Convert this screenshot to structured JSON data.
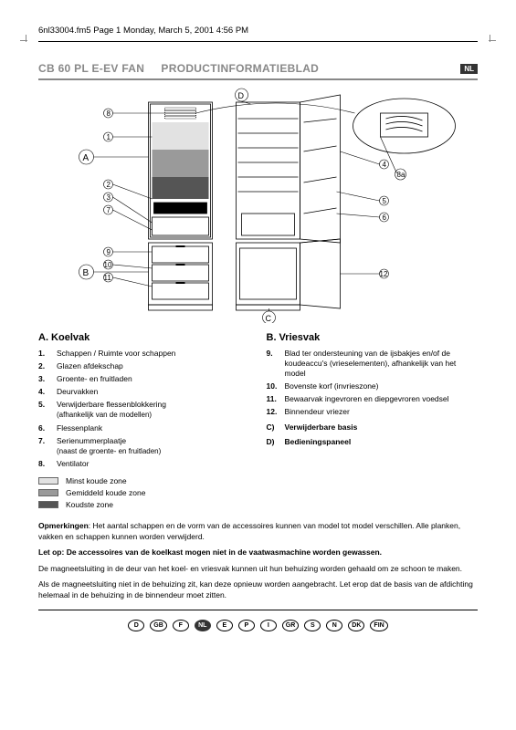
{
  "header": "6nl33004.fm5  Page 1  Monday, March 5, 2001  4:56 PM",
  "title_left": "CB 60 PL  E-EV FAN",
  "title_right": "PRODUCTINFORMATIEBLAD",
  "lang_badge": "NL",
  "diagram": {
    "callouts_left_closed": [
      "8",
      "1",
      "2",
      "3",
      "7"
    ],
    "callouts_left_freezer": [
      "9",
      "10",
      "11"
    ],
    "callout_A": "A",
    "callout_B": "B",
    "callout_C": "C",
    "callout_D": "D",
    "callouts_right": [
      "4",
      "8a",
      "5",
      "6",
      "12"
    ],
    "zone_colors": {
      "light": "#e2e2e2",
      "mid": "#9a9a9a",
      "dark": "#555555"
    },
    "stroke": "#000000",
    "stroke_light": "#444444"
  },
  "sectionA": {
    "head": "A.    Koelvak",
    "items": [
      {
        "n": "1.",
        "t": "Schappen / Ruimte voor schappen"
      },
      {
        "n": "2.",
        "t": "Glazen afdekschap"
      },
      {
        "n": "3.",
        "t": "Groente- en fruitladen"
      },
      {
        "n": "4.",
        "t": "Deurvakken"
      },
      {
        "n": "5.",
        "t": "Verwijderbare flessenblokkering",
        "sub": "(afhankelijk van de modellen)"
      },
      {
        "n": "6.",
        "t": "Flessenplank"
      },
      {
        "n": "7.",
        "t": "Serienummerplaatje",
        "sub": "(naast de groente- en fruitladen)"
      },
      {
        "n": "8.",
        "t": "Ventilator"
      }
    ]
  },
  "sectionB": {
    "head": "B.    Vriesvak",
    "items": [
      {
        "n": "9.",
        "t": "Blad ter ondersteuning van de ijsbakjes en/of de koudeaccu's (vrieselementen), afhankelijk van het model"
      },
      {
        "n": "10.",
        "t": "Bovenste korf (invrieszone)"
      },
      {
        "n": "11.",
        "t": "Bewaarvak ingevroren en diepgevroren voedsel"
      },
      {
        "n": "12.",
        "t": "Binnendeur vriezer"
      }
    ],
    "letters": [
      {
        "n": "C)",
        "t": "Verwijderbare basis"
      },
      {
        "n": "D)",
        "t": "Bedieningspaneel"
      }
    ]
  },
  "legend": [
    {
      "color": "#e2e2e2",
      "label": "Minst koude zone"
    },
    {
      "color": "#9a9a9a",
      "label": "Gemiddeld koude zone"
    },
    {
      "color": "#555555",
      "label": "Koudste zone"
    }
  ],
  "notes": {
    "p1_bold": "Opmerkingen",
    "p1": ": Het aantal schappen en de vorm van de accessoires kunnen van model tot model verschillen. Alle planken, vakken en schappen kunnen worden verwijderd.",
    "p2_bold": "Let op: De accessoires van de koelkast mogen niet in de vaatwasmachine worden gewassen.",
    "p3": "De magneetsluiting in de deur van het koel- en vriesvak kunnen uit hun behuizing worden gehaald om ze schoon te maken.",
    "p4": "Als de magneetsluiting niet in de behuizing zit, kan deze opnieuw worden aangebracht. Let erop dat de basis van de afdichting helemaal in de behuizing in de binnendeur moet zitten."
  },
  "langs": [
    "D",
    "GB",
    "F",
    "NL",
    "E",
    "P",
    "I",
    "GR",
    "S",
    "N",
    "DK",
    "FIN"
  ],
  "active_lang": "NL"
}
